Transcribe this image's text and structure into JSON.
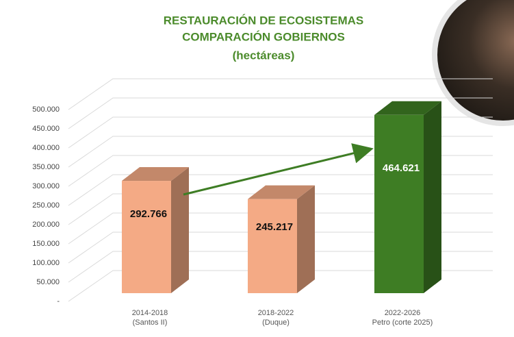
{
  "chart_data": {
    "type": "bar3d",
    "title": [
      "RESTAURACIÓN DE ECOSISTEMAS",
      "COMPARACIÓN GOBIERNOS",
      "(hectáreas)"
    ],
    "categories": [
      [
        "2014-2018",
        "(Santos II)"
      ],
      [
        "2018-2022",
        "(Duque)"
      ],
      [
        "2022-2026",
        "Petro (corte 2025)"
      ]
    ],
    "values": [
      292766,
      245217,
      464621
    ],
    "value_labels": [
      "292.766",
      "245.217",
      "464.621"
    ],
    "colors": [
      "#f4aa85",
      "#f4aa85",
      "#3e7d24"
    ],
    "label_colors": [
      "#111111",
      "#111111",
      "#ffffff"
    ],
    "ylim": [
      0,
      500000
    ],
    "yticks": [
      {
        "value": 0,
        "label": "-"
      },
      {
        "value": 50000,
        "label": "50.000"
      },
      {
        "value": 100000,
        "label": "100.000"
      },
      {
        "value": 150000,
        "label": "150.000"
      },
      {
        "value": 200000,
        "label": "200.000"
      },
      {
        "value": 250000,
        "label": "250.000"
      },
      {
        "value": 300000,
        "label": "300.000"
      },
      {
        "value": 350000,
        "label": "350.000"
      },
      {
        "value": 400000,
        "label": "400.000"
      },
      {
        "value": 450000,
        "label": "450.000"
      },
      {
        "value": 500000,
        "label": "500.000"
      }
    ],
    "grid": true
  }
}
